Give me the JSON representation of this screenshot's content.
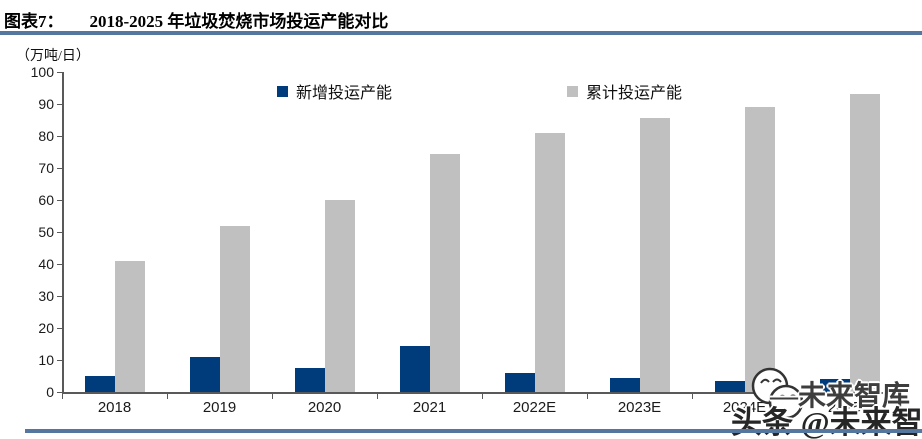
{
  "header": {
    "label": "图表7：",
    "title": "2018-2025 年垃圾焚烧市场投运产能对比"
  },
  "chart_data": {
    "type": "bar",
    "title": "2018-2025 年垃圾焚烧市场投运产能对比",
    "unit_label": "（万吨/日）",
    "categories": [
      "2018",
      "2019",
      "2020",
      "2021",
      "2022E",
      "2023E",
      "2024E",
      "2025E"
    ],
    "series": [
      {
        "name": "新增投运产能",
        "color": "#003B7C",
        "values": [
          5,
          11,
          7.5,
          14.5,
          6,
          4.5,
          3.5,
          4
        ]
      },
      {
        "name": "累计投运产能",
        "color": "#C0C0C0",
        "values": [
          41,
          52,
          60,
          74.5,
          81,
          85.5,
          89,
          93
        ]
      }
    ],
    "xlabel": "",
    "ylabel": "万吨/日",
    "ylim": [
      0,
      100
    ],
    "y_ticks": [
      0,
      10,
      20,
      30,
      40,
      50,
      60,
      70,
      80,
      90,
      100
    ],
    "grid": false,
    "legend_position": "top"
  },
  "watermark": {
    "ghost_text": "—未来智库",
    "text": "头条 @未来智库",
    "icon": "smiley-face-icon"
  },
  "colors": {
    "accent_rule": "#54779F",
    "axis": "#595959",
    "bar_new": "#003B7C",
    "bar_cumulative": "#C0C0C0"
  }
}
